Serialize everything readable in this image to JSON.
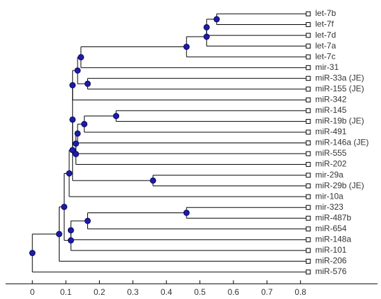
{
  "chart_data": {
    "type": "dendrogram",
    "xlim": [
      -0.08,
      1.03
    ],
    "xticks": [
      0,
      0.1,
      0.2,
      0.3,
      0.4,
      0.5,
      0.6,
      0.7,
      0.8
    ],
    "node_color": "#1c1ca8",
    "tree": {
      "x": 0,
      "children": [
        {
          "x": 0.08,
          "children": [
            {
              "x": 0.095,
              "children": [
                {
                  "x": 0.11,
                  "children": [
                    {
                      "x": 0.12,
                      "children": [
                        {
                          "x": 0.12,
                          "children": [
                            {
                              "x": 0.12,
                              "children": [
                                {
                                  "x": 0.135,
                                  "children": [
                                    {
                                      "x": 0.145,
                                      "children": [
                                        {
                                          "x": 0.46,
                                          "children": [
                                            {
                                              "x": 0.52,
                                              "children": [
                                                {
                                                  "x": 0.52,
                                                  "children": [
                                                    {
                                                      "x": 0.55,
                                                      "children": [
                                                        "let-7b",
                                                        "let-7f"
                                                      ]
                                                    },
                                                    "let-7d"
                                                  ]
                                                },
                                                "let-7a"
                                              ]
                                            },
                                            "let-7c"
                                          ]
                                        },
                                        "mir-31"
                                      ]
                                    },
                                    {
                                      "x": 0.165,
                                      "children": [
                                        "miR-33a (JE)",
                                        "miR-155 (JE)"
                                      ]
                                    }
                                  ]
                                },
                                "miR-342"
                              ]
                            },
                            {
                              "x": 0.13,
                              "children": [
                                {
                                  "x": 0.13,
                                  "children": [
                                    {
                                      "x": 0.135,
                                      "children": [
                                        {
                                          "x": 0.155,
                                          "children": [
                                            {
                                              "x": 0.25,
                                              "children": [
                                                "miR-145",
                                                "miR-19b (JE)"
                                              ]
                                            },
                                            "miR-491"
                                          ]
                                        },
                                        "miR-146a (JE)"
                                      ]
                                    },
                                    "miR-555"
                                  ]
                                },
                                "miR-202"
                              ]
                            }
                          ]
                        },
                        {
                          "x": 0.36,
                          "children": [
                            "mir-29a",
                            "miR-29b (JE)"
                          ]
                        }
                      ]
                    },
                    "mir-10a"
                  ]
                },
                {
                  "x": 0.115,
                  "children": [
                    {
                      "x": 0.115,
                      "children": [
                        {
                          "x": 0.165,
                          "children": [
                            {
                              "x": 0.46,
                              "children": [
                                "mir-323",
                                "miR-487b"
                              ]
                            },
                            "miR-654"
                          ]
                        },
                        "miR-148a"
                      ]
                    },
                    "miR-101"
                  ]
                }
              ]
            },
            "miR-206"
          ]
        },
        "miR-576"
      ]
    }
  }
}
